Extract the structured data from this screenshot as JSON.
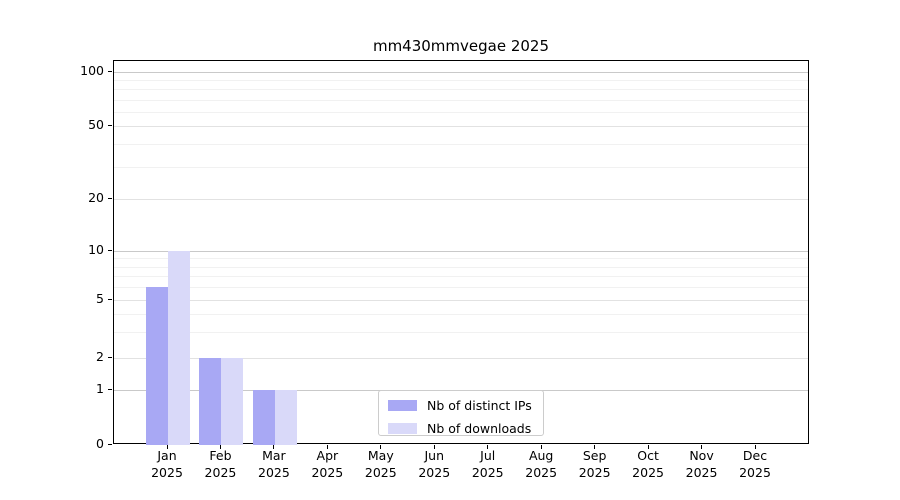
{
  "chart_data": {
    "type": "bar",
    "title": "mm430mmvegae 2025",
    "categories": [
      "Jan 2025",
      "Feb 2025",
      "Mar 2025",
      "Apr 2025",
      "May 2025",
      "Jun 2025",
      "Jul 2025",
      "Aug 2025",
      "Sep 2025",
      "Oct 2025",
      "Nov 2025",
      "Dec 2025"
    ],
    "months": [
      "Jan",
      "Feb",
      "Mar",
      "Apr",
      "May",
      "Jun",
      "Jul",
      "Aug",
      "Sep",
      "Oct",
      "Nov",
      "Dec"
    ],
    "year": "2025",
    "series": [
      {
        "name": "Nb of distinct IPs",
        "color": "#a8a8f4",
        "values": [
          6,
          2,
          1,
          0,
          0,
          0,
          0,
          0,
          0,
          0,
          0,
          0
        ]
      },
      {
        "name": "Nb of downloads",
        "color": "#d9d9f9",
        "values": [
          10,
          2,
          1,
          0,
          0,
          0,
          0,
          0,
          0,
          0,
          0,
          0
        ]
      }
    ],
    "xlabel": "",
    "ylabel": "",
    "y_ticks": [
      0,
      1,
      2,
      5,
      10,
      20,
      50,
      100
    ],
    "y_minor_ticks": [
      3,
      4,
      6,
      7,
      8,
      9,
      30,
      40,
      60,
      70,
      80,
      90
    ],
    "ylim": [
      0,
      115
    ],
    "y_scale": "log-like with zero baseline",
    "grid": true,
    "legend_position": "lower center",
    "colors": {
      "distinct_ips_bar": "#a8a8f4",
      "downloads_bar": "#d9d9f9",
      "grid_major": "#c9c9c9",
      "grid_labeled_minor": "#e2e2e2",
      "grid_minor": "#f1f1f1",
      "axis": "#000000",
      "legend_border": "#cccccc"
    }
  }
}
